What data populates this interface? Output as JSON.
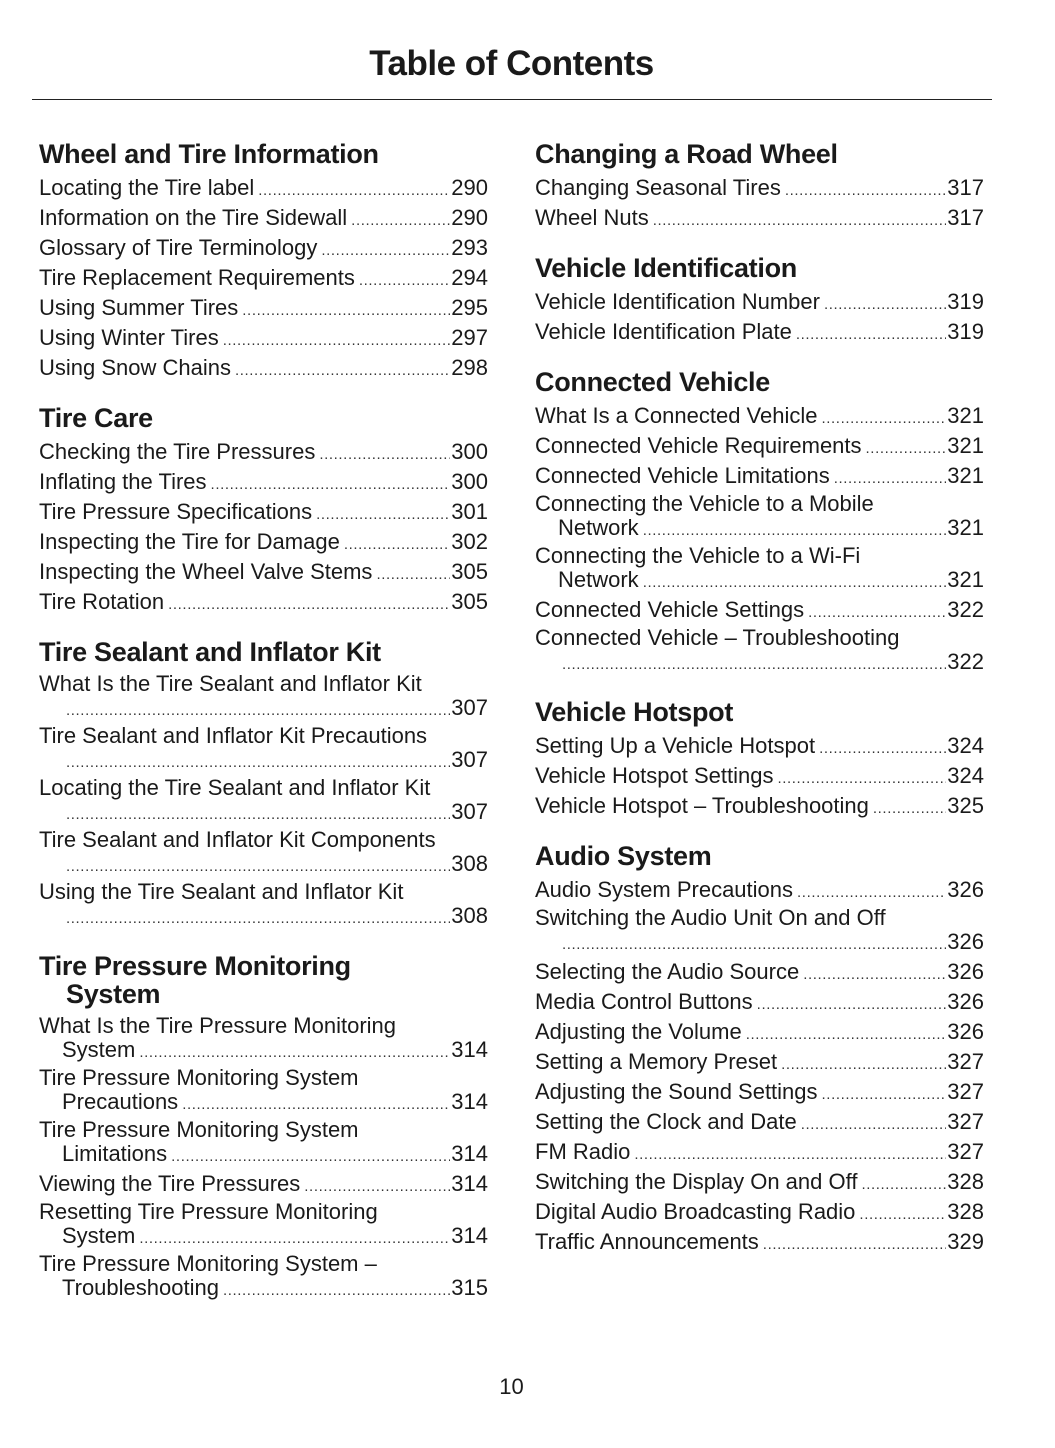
{
  "header": {
    "title": "Table of Contents"
  },
  "footer": {
    "page_number": "10"
  },
  "columns": [
    {
      "sections": [
        {
          "heading": [
            "Wheel and Tire Information"
          ],
          "entries": [
            {
              "title": "Locating the Tire label",
              "page": "290"
            },
            {
              "title": "Information on the Tire Sidewall",
              "page": "290"
            },
            {
              "title": "Glossary of Tire Terminology",
              "page": "293"
            },
            {
              "title": "Tire Replacement Requirements",
              "page": "294"
            },
            {
              "title": "Using Summer Tires",
              "page": "295"
            },
            {
              "title": "Using Winter Tires",
              "page": "297"
            },
            {
              "title": "Using Snow Chains",
              "page": "298"
            }
          ]
        },
        {
          "heading": [
            "Tire Care"
          ],
          "entries": [
            {
              "title": "Checking the Tire Pressures",
              "page": "300"
            },
            {
              "title": "Inflating the Tires",
              "page": "300"
            },
            {
              "title": "Tire Pressure Specifications",
              "page": "301"
            },
            {
              "title": "Inspecting the Tire for Damage",
              "page": "302"
            },
            {
              "title": "Inspecting the Wheel Valve Stems",
              "page": "305"
            },
            {
              "title": "Tire Rotation",
              "page": "305"
            }
          ]
        },
        {
          "heading": [
            "Tire Sealant and Inflator Kit"
          ],
          "entries": [
            {
              "title": "What Is the Tire Sealant and Inflator Kit",
              "cont": "",
              "page": "307",
              "wrapped": true
            },
            {
              "title": "Tire Sealant and Inflator Kit Precautions",
              "cont": "",
              "page": "307",
              "wrapped": true
            },
            {
              "title": "Locating the Tire Sealant and Inflator Kit",
              "cont": "",
              "page": "307",
              "wrapped": true
            },
            {
              "title": "Tire Sealant and Inflator Kit Components",
              "cont": "",
              "page": "308",
              "wrapped": true
            },
            {
              "title": "Using the Tire Sealant and Inflator Kit",
              "cont": "",
              "page": "308",
              "wrapped": true
            }
          ]
        },
        {
          "heading": [
            "Tire Pressure Monitoring",
            "System"
          ],
          "entries": [
            {
              "title": "What Is the Tire Pressure Monitoring",
              "cont": "System",
              "page": "314",
              "wrapped": true
            },
            {
              "title": "Tire Pressure Monitoring System",
              "cont": "Precautions",
              "page": "314",
              "wrapped": true
            },
            {
              "title": "Tire Pressure Monitoring System",
              "cont": "Limitations",
              "page": "314",
              "wrapped": true
            },
            {
              "title": "Viewing the Tire Pressures",
              "page": "314"
            },
            {
              "title": "Resetting Tire Pressure Monitoring",
              "cont": "System",
              "page": "314",
              "wrapped": true
            },
            {
              "title": "Tire Pressure Monitoring System –",
              "cont": "Troubleshooting",
              "page": "315",
              "wrapped": true
            }
          ]
        }
      ]
    },
    {
      "sections": [
        {
          "heading": [
            "Changing a Road Wheel"
          ],
          "entries": [
            {
              "title": "Changing Seasonal Tires",
              "page": "317"
            },
            {
              "title": "Wheel Nuts",
              "page": "317"
            }
          ]
        },
        {
          "heading": [
            "Vehicle Identification"
          ],
          "entries": [
            {
              "title": "Vehicle Identification Number",
              "page": "319"
            },
            {
              "title": "Vehicle Identification Plate",
              "page": "319"
            }
          ]
        },
        {
          "heading": [
            "Connected Vehicle"
          ],
          "entries": [
            {
              "title": "What Is a Connected Vehicle",
              "page": "321"
            },
            {
              "title": "Connected Vehicle Requirements",
              "page": "321"
            },
            {
              "title": "Connected Vehicle Limitations",
              "page": "321"
            },
            {
              "title": "Connecting the Vehicle to a Mobile",
              "cont": "Network",
              "page": "321",
              "wrapped": true
            },
            {
              "title": "Connecting the Vehicle to a Wi-Fi",
              "cont": "Network",
              "page": "321",
              "wrapped": true
            },
            {
              "title": "Connected Vehicle Settings",
              "page": "322"
            },
            {
              "title": "Connected Vehicle – Troubleshooting",
              "cont": "",
              "page": "322",
              "wrapped": true
            }
          ]
        },
        {
          "heading": [
            "Vehicle Hotspot"
          ],
          "entries": [
            {
              "title": "Setting Up a Vehicle Hotspot",
              "page": "324"
            },
            {
              "title": "Vehicle Hotspot Settings",
              "page": "324"
            },
            {
              "title": "Vehicle Hotspot – Troubleshooting",
              "page": "325"
            }
          ]
        },
        {
          "heading": [
            "Audio System"
          ],
          "entries": [
            {
              "title": "Audio System Precautions",
              "page": "326"
            },
            {
              "title": "Switching the Audio Unit On and Off",
              "cont": "",
              "page": "326",
              "wrapped": true
            },
            {
              "title": "Selecting the Audio Source",
              "page": "326"
            },
            {
              "title": "Media Control Buttons",
              "page": "326"
            },
            {
              "title": "Adjusting the Volume",
              "page": "326"
            },
            {
              "title": "Setting a Memory Preset",
              "page": "327"
            },
            {
              "title": "Adjusting the Sound Settings",
              "page": "327"
            },
            {
              "title": "Setting the Clock and Date",
              "page": "327"
            },
            {
              "title": "FM Radio",
              "page": "327"
            },
            {
              "title": "Switching the Display On and Off",
              "page": "328"
            },
            {
              "title": "Digital Audio Broadcasting Radio",
              "page": "328"
            },
            {
              "title": "Traffic Announcements",
              "page": "329"
            }
          ]
        }
      ]
    }
  ]
}
